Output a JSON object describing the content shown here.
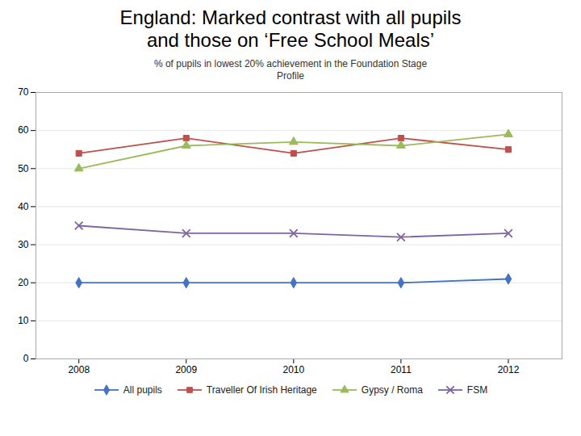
{
  "chart_data": {
    "type": "line",
    "title": "England: Marked contrast with all pupils\nand those on ‘Free School Meals’",
    "subtitle": "% of pupils in lowest 20% achievement in the Foundation Stage\nProfile",
    "x": [
      2008,
      2009,
      2010,
      2011,
      2012
    ],
    "series": [
      {
        "name": "All pupils",
        "color": "#4472C4",
        "marker": "diamond",
        "values": [
          20,
          20,
          20,
          20,
          21
        ]
      },
      {
        "name": "Traveller Of Irish Heritage",
        "color": "#C0504D",
        "marker": "square",
        "values": [
          54,
          58,
          54,
          58,
          55
        ]
      },
      {
        "name": "Gypsy / Roma",
        "color": "#9BBB59",
        "marker": "triangle",
        "values": [
          50,
          56,
          57,
          56,
          59
        ]
      },
      {
        "name": "FSM",
        "color": "#8064A2",
        "marker": "x",
        "values": [
          35,
          33,
          33,
          32,
          33
        ]
      }
    ],
    "xlim": [
      2007.6,
      2012.5
    ],
    "xticks": [
      2008,
      2009,
      2010,
      2011,
      2012
    ],
    "ylim": [
      0,
      70
    ],
    "yticks": [
      0,
      10,
      20,
      30,
      40,
      50,
      60,
      70
    ],
    "grid": true,
    "legend": "bottom"
  }
}
